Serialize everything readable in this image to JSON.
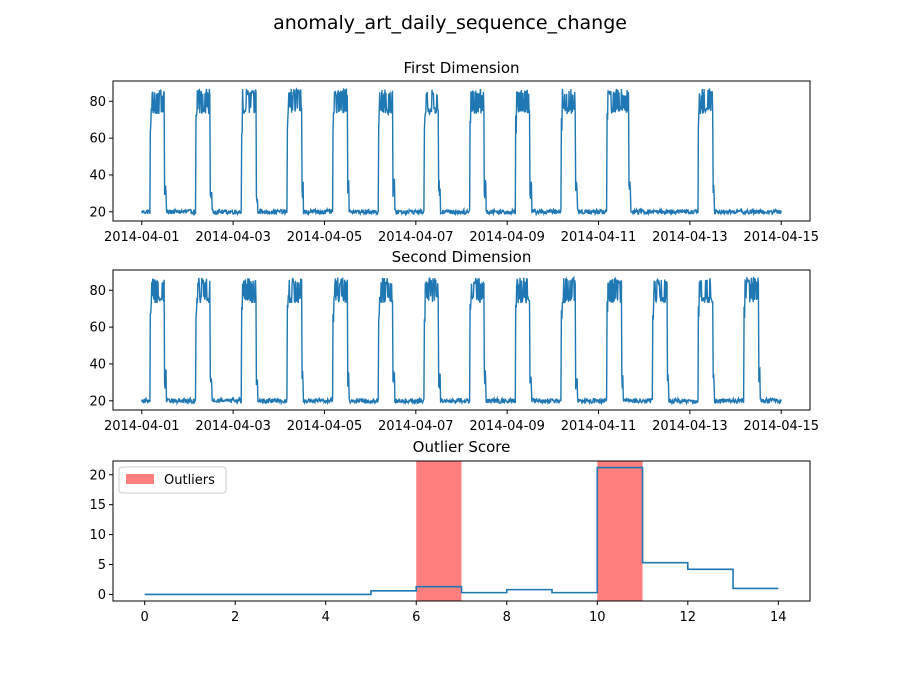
{
  "title": "anomaly_art_daily_sequence_change",
  "colors": {
    "line": "#1f77b4",
    "outlier": "#ff7f7f"
  },
  "chart_data": [
    {
      "type": "line",
      "title": "First Dimension",
      "x_kind": "date",
      "xlim": [
        "2014-04-01",
        "2014-04-15"
      ],
      "xticks": [
        "2014-04-01",
        "2014-04-03",
        "2014-04-05",
        "2014-04-07",
        "2014-04-09",
        "2014-04-11",
        "2014-04-13",
        "2014-04-15"
      ],
      "ylim": [
        15,
        91
      ],
      "yticks": [
        20,
        40,
        60,
        80
      ],
      "baseline": 20,
      "peak": 80,
      "active_days": [
        0,
        1,
        2,
        3,
        4,
        5,
        6,
        7,
        8,
        9,
        10,
        12
      ],
      "extended_active_days": [
        10
      ]
    },
    {
      "type": "line",
      "title": "Second Dimension",
      "x_kind": "date",
      "xlim": [
        "2014-04-01",
        "2014-04-15"
      ],
      "xticks": [
        "2014-04-01",
        "2014-04-03",
        "2014-04-05",
        "2014-04-07",
        "2014-04-09",
        "2014-04-11",
        "2014-04-13",
        "2014-04-15"
      ],
      "ylim": [
        15,
        91
      ],
      "yticks": [
        20,
        40,
        60,
        80
      ],
      "baseline": 20,
      "peak": 80,
      "active_days": [
        0,
        1,
        2,
        3,
        4,
        5,
        6,
        7,
        8,
        9,
        10,
        11,
        12,
        13
      ],
      "extended_active_days": []
    },
    {
      "type": "line",
      "title": "Outlier Score",
      "xlim": [
        -0.7,
        14.7
      ],
      "xticks": [
        0,
        2,
        4,
        6,
        8,
        10,
        12,
        14
      ],
      "ylim": [
        -1.1,
        22.3
      ],
      "yticks": [
        0,
        5,
        10,
        15,
        20
      ],
      "step_x": [
        0,
        1,
        2,
        3,
        4,
        5,
        6,
        7,
        8,
        9,
        10,
        11,
        12,
        13,
        14
      ],
      "step_y": [
        0.0,
        0.0,
        0.0,
        0.0,
        0.0,
        0.6,
        1.3,
        0.3,
        0.8,
        0.3,
        21.2,
        5.3,
        4.2,
        1.0,
        1.0
      ],
      "outlier_ranges": [
        [
          6,
          7
        ],
        [
          10,
          11
        ]
      ],
      "legend": [
        "Outliers"
      ],
      "legend_position": "upper-left"
    }
  ]
}
